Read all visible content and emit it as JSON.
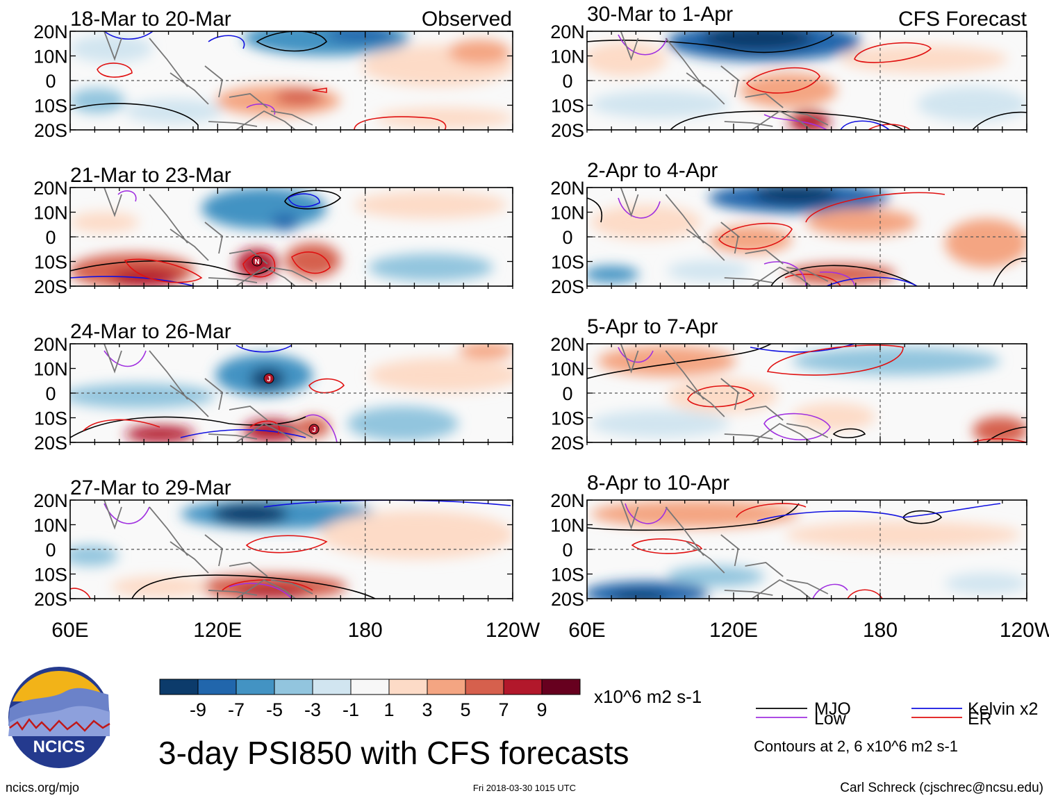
{
  "chart_data": {
    "type": "heatmap",
    "title": "3-day PSI850 with CFS forecasts",
    "variable": "PSI850",
    "units": "x10^6 m2 s-1",
    "x_ticks": [
      "60E",
      "120E",
      "180",
      "120W"
    ],
    "x_range_deg_east": [
      60,
      240
    ],
    "y_ticks": [
      "20N",
      "10N",
      "0",
      "10S",
      "20S"
    ],
    "y_range_deg": [
      -20,
      20
    ],
    "grid": "dashed lines at equator and 180",
    "colorbar": {
      "labels": [
        "-9",
        "-7",
        "-5",
        "-3",
        "-1",
        "1",
        "3",
        "5",
        "7",
        "9"
      ],
      "levels": [
        -9,
        -7,
        -5,
        -3,
        -1,
        1,
        3,
        5,
        7,
        9
      ],
      "colors": [
        "#0c3b6b",
        "#2166ac",
        "#4393c3",
        "#92c5de",
        "#d1e5f0",
        "#f7f7f7",
        "#fddbc7",
        "#f4a582",
        "#d6604d",
        "#b2182b",
        "#67001f"
      ]
    },
    "panel_headers": {
      "observed": "Observed",
      "forecast": "CFS Forecast"
    },
    "panels": [
      {
        "column": "observed",
        "period": "18-Mar to 20-Mar",
        "header": "Observed"
      },
      {
        "column": "observed",
        "period": "21-Mar to 23-Mar",
        "marker": "N"
      },
      {
        "column": "observed",
        "period": "24-Mar to 26-Mar",
        "markers": [
          "J",
          "J"
        ]
      },
      {
        "column": "observed",
        "period": "27-Mar to 29-Mar"
      },
      {
        "column": "forecast",
        "period": "30-Mar to 1-Apr",
        "header": "CFS Forecast"
      },
      {
        "column": "forecast",
        "period": "2-Apr to 4-Apr"
      },
      {
        "column": "forecast",
        "period": "5-Apr to 7-Apr"
      },
      {
        "column": "forecast",
        "period": "8-Apr to 10-Apr"
      }
    ],
    "legend": {
      "items": [
        {
          "label": "MJO",
          "color": "#000000"
        },
        {
          "label": "Kelvin x2",
          "color": "#1010e0"
        },
        {
          "label": "Low",
          "color": "#a030e0"
        },
        {
          "label": "ER",
          "color": "#e01010"
        }
      ],
      "note": "Contours at 2, 6 x10^6 m2 s-1"
    }
  },
  "footer": {
    "logo_text": "NCICS",
    "site": "ncics.org/mjo",
    "timestamp": "Fri 2018-03-30 1015 UTC",
    "author": "Carl Schreck (cjschrec@ncsu.edu)"
  }
}
